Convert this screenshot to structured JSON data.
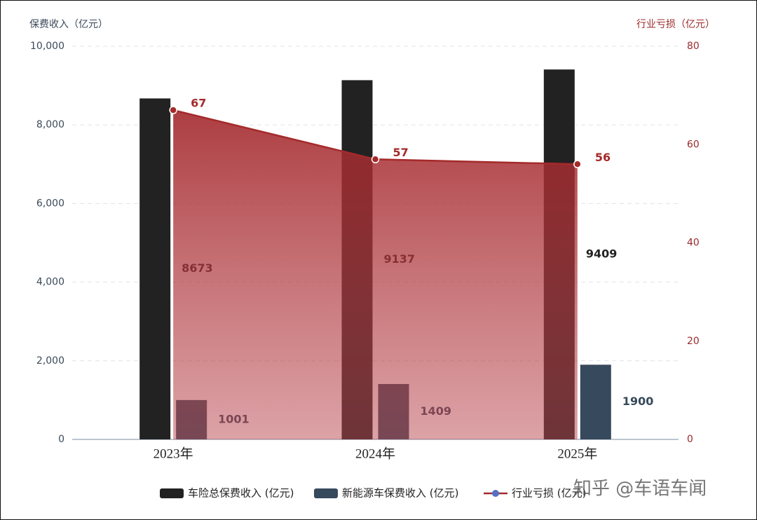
{
  "chart_data": {
    "type": "bar",
    "y_label": "保费收入（亿元）",
    "y2_label": "行业亏损（亿元）",
    "categories": [
      "2023年",
      "2024年",
      "2025年"
    ],
    "series": [
      {
        "name": "车险总保费收入 (亿元)",
        "type": "bar",
        "color": "#222222",
        "values": [
          8673,
          9137,
          9409
        ]
      },
      {
        "name": "新能源车保费收入 (亿元)",
        "type": "bar",
        "color": "#37495c",
        "values": [
          1001,
          1409,
          1900
        ]
      },
      {
        "name": "行业亏损 (亿元)",
        "type": "line",
        "axis": "y2",
        "color": "#a52a2a",
        "values": [
          67,
          57,
          56
        ]
      }
    ],
    "ylim": [
      0,
      10000
    ],
    "yticks": [
      0,
      {
        "value": 2000,
        "label": "2,000"
      },
      {
        "value": 4000,
        "label": "4,000"
      },
      {
        "value": 6000,
        "label": "6,000"
      },
      {
        "value": 8000,
        "label": "8,000"
      },
      {
        "value": 10000,
        "label": "10,000"
      }
    ],
    "y2lim": [
      0,
      80
    ],
    "y2ticks": [
      0,
      20,
      40,
      60,
      80
    ],
    "grid": true,
    "legend": "bottom"
  },
  "watermark": "知乎 @车语车闻"
}
